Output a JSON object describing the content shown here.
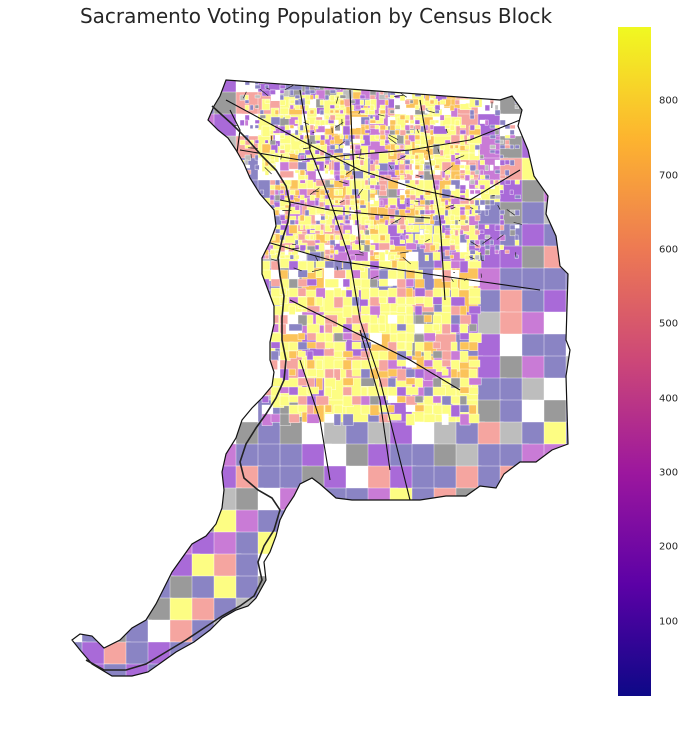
{
  "title": "Sacramento Voting Population by Census Block",
  "colorbar": {
    "min": 0,
    "max": 900,
    "ticks": [
      100,
      200,
      300,
      400,
      500,
      600,
      700,
      800
    ],
    "tick_labels": [
      "100",
      "200",
      "300",
      "400",
      "500",
      "600",
      "700",
      "800"
    ],
    "colormap": "plasma",
    "stops": [
      "#0d0887",
      "#5c01a6",
      "#9c179e",
      "#cc4778",
      "#ed7953",
      "#fdb42f",
      "#f0f921"
    ]
  },
  "legend_colors": {
    "no_data": "#9a9a9a",
    "outline": "#000000"
  }
}
